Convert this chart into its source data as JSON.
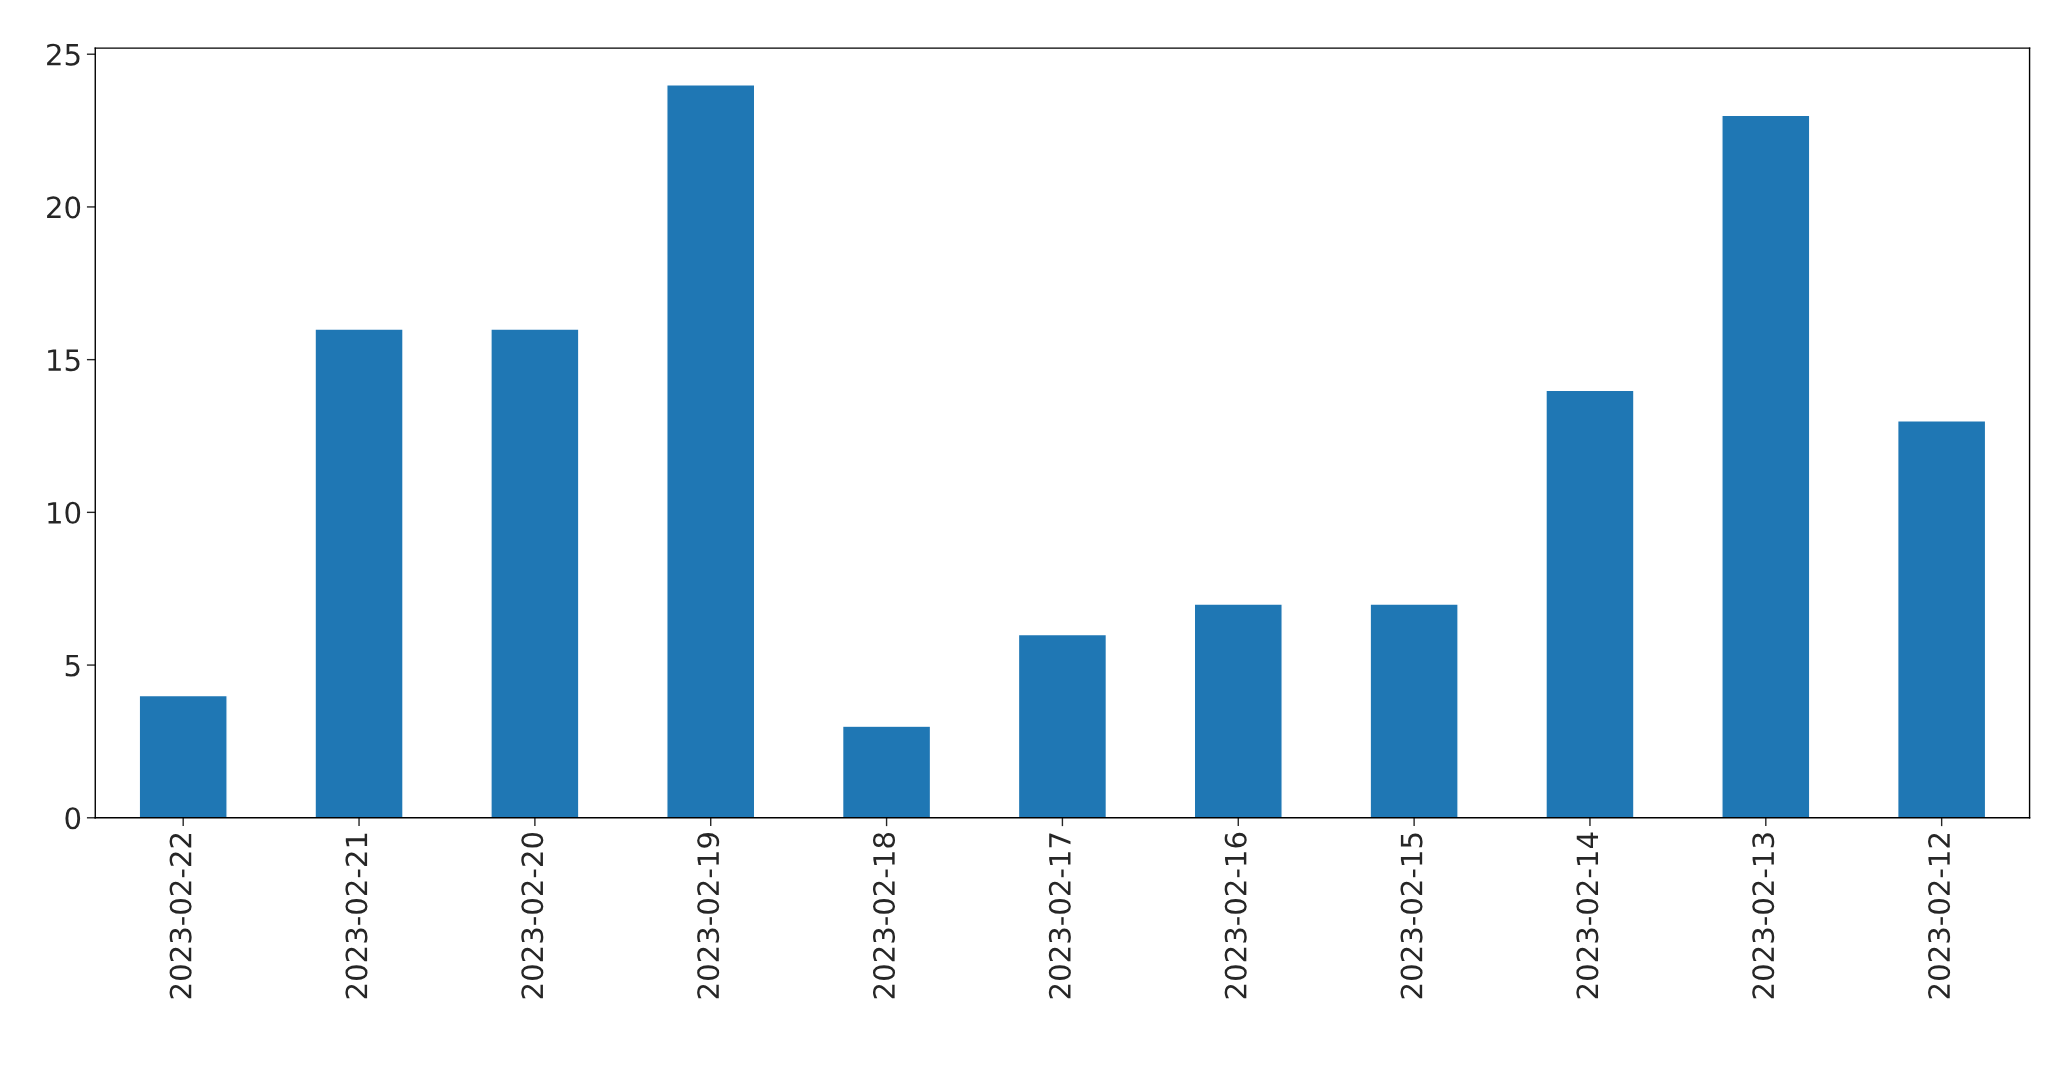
{
  "chart_data": {
    "type": "bar",
    "categories": [
      "2023-02-22",
      "2023-02-21",
      "2023-02-20",
      "2023-02-19",
      "2023-02-18",
      "2023-02-17",
      "2023-02-16",
      "2023-02-15",
      "2023-02-14",
      "2023-02-13",
      "2023-02-12"
    ],
    "values": [
      4,
      16,
      16,
      24,
      3,
      6,
      7,
      7,
      14,
      23,
      13
    ],
    "color": "#1f77b4",
    "ylim": [
      0,
      25.2
    ],
    "yticks": [
      0,
      5,
      10,
      15,
      20,
      25
    ],
    "grid": false,
    "legend": false
  }
}
